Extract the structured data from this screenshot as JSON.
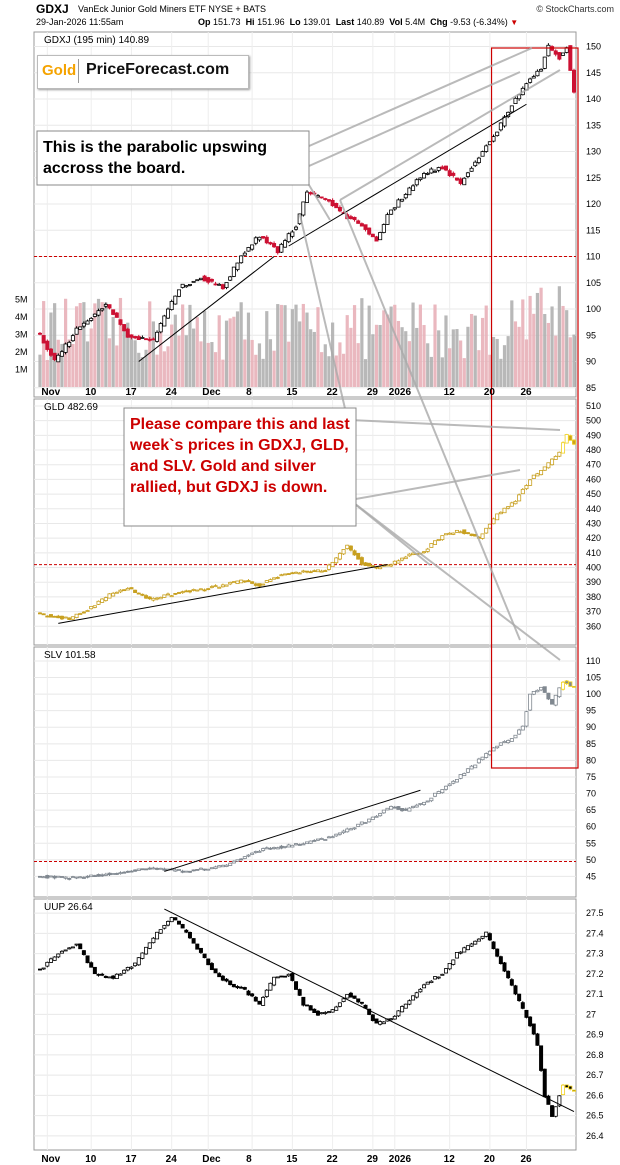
{
  "header": {
    "symbol": "GDXJ",
    "name": "VanEck Junior Gold Miners ETF NYSE + BATS",
    "datetime": "29-Jan-2026 11:55am",
    "open_label": "Op",
    "open": "151.73",
    "high_label": "Hi",
    "high": "151.96",
    "low_label": "Lo",
    "low": "139.01",
    "last_label": "Last",
    "last": "140.89",
    "vol_label": "Vol",
    "vol": "5.4M",
    "chg_label": "Chg",
    "chg": "-9.53 (-6.34%)",
    "copyright": "© StockCharts.com"
  },
  "logo": {
    "gold": "Gold",
    "brand": "PriceForecast.com"
  },
  "annotations": {
    "callout1": "This is the parabolic upswing accross the board.",
    "callout2": "Please compare this and last week`s prices in GDXJ, GLD, and SLV. Gold and silver rallied, but GDXJ is down."
  },
  "colors": {
    "up": "#000000",
    "down": "#cc1133",
    "gld": "#c8a020",
    "slv": "#808890",
    "uup": "#000000",
    "hilite": "#f0d020",
    "redline": "#cc0000",
    "volume_up": "#b0b0b0",
    "volume_down": "#e8b0b8"
  },
  "chart_data": [
    {
      "type": "candlestick",
      "title": "GDXJ (195 min) 140.89",
      "ylim": [
        84,
        152
      ],
      "yticks": [
        85,
        90,
        95,
        100,
        105,
        110,
        115,
        120,
        125,
        130,
        135,
        140,
        145,
        150
      ],
      "reference_line": 110,
      "anchors": [
        [
          0,
          95
        ],
        [
          4,
          90
        ],
        [
          10,
          96
        ],
        [
          18,
          101
        ],
        [
          24,
          95
        ],
        [
          31,
          94
        ],
        [
          38,
          104
        ],
        [
          44,
          106
        ],
        [
          50,
          104
        ],
        [
          55,
          110
        ],
        [
          60,
          114
        ],
        [
          65,
          111
        ],
        [
          70,
          116
        ],
        [
          73,
          122
        ],
        [
          78,
          121
        ],
        [
          83,
          118
        ],
        [
          88,
          116
        ],
        [
          92,
          113
        ],
        [
          95,
          118
        ],
        [
          100,
          122
        ],
        [
          105,
          126
        ],
        [
          110,
          127
        ],
        [
          115,
          124
        ],
        [
          120,
          129
        ],
        [
          125,
          134
        ],
        [
          130,
          140
        ],
        [
          134,
          144
        ],
        [
          137,
          146
        ],
        [
          139,
          150
        ],
        [
          142,
          148
        ],
        [
          144,
          150
        ],
        [
          146,
          141
        ]
      ],
      "count": 147,
      "volume": {
        "yticks": [
          "1M",
          "2M",
          "3M",
          "4M",
          "5M"
        ],
        "range_millions": [
          0,
          6
        ]
      }
    },
    {
      "type": "candlestick",
      "title": "GLD 482.69",
      "ylim": [
        350,
        512
      ],
      "yticks": [
        360,
        370,
        380,
        390,
        400,
        410,
        420,
        430,
        440,
        450,
        460,
        470,
        480,
        490,
        500,
        510
      ],
      "reference_line": 402,
      "anchors": [
        [
          0,
          368
        ],
        [
          8,
          365
        ],
        [
          14,
          373
        ],
        [
          20,
          383
        ],
        [
          24,
          386
        ],
        [
          30,
          378
        ],
        [
          38,
          383
        ],
        [
          44,
          385
        ],
        [
          50,
          388
        ],
        [
          55,
          391
        ],
        [
          60,
          388
        ],
        [
          66,
          395
        ],
        [
          72,
          397
        ],
        [
          78,
          398
        ],
        [
          84,
          415
        ],
        [
          88,
          403
        ],
        [
          92,
          400
        ],
        [
          96,
          402
        ],
        [
          100,
          408
        ],
        [
          105,
          411
        ],
        [
          110,
          422
        ],
        [
          115,
          425
        ],
        [
          120,
          420
        ],
        [
          125,
          436
        ],
        [
          130,
          446
        ],
        [
          134,
          460
        ],
        [
          138,
          468
        ],
        [
          142,
          478
        ],
        [
          144,
          490
        ],
        [
          146,
          483
        ]
      ],
      "count": 147
    },
    {
      "type": "candlestick",
      "title": "SLV 101.58",
      "ylim": [
        40,
        113
      ],
      "yticks": [
        45,
        50,
        55,
        60,
        65,
        70,
        75,
        80,
        85,
        90,
        95,
        100,
        105,
        110
      ],
      "reference_line": 49.5,
      "anchors": [
        [
          0,
          45
        ],
        [
          10,
          44.5
        ],
        [
          20,
          46
        ],
        [
          30,
          47.5
        ],
        [
          40,
          46.5
        ],
        [
          50,
          48
        ],
        [
          60,
          53
        ],
        [
          70,
          54.5
        ],
        [
          80,
          57
        ],
        [
          88,
          61
        ],
        [
          96,
          66
        ],
        [
          100,
          65
        ],
        [
          106,
          68
        ],
        [
          112,
          73
        ],
        [
          118,
          78
        ],
        [
          124,
          84
        ],
        [
          128,
          86
        ],
        [
          132,
          90
        ],
        [
          134,
          100
        ],
        [
          137,
          102
        ],
        [
          140,
          97
        ],
        [
          143,
          104
        ],
        [
          146,
          102
        ]
      ],
      "count": 147
    },
    {
      "type": "candlestick",
      "title": "UUP 26.64",
      "ylim": [
        26.35,
        27.55
      ],
      "yticks": [
        26.4,
        26.5,
        26.6,
        26.7,
        26.8,
        26.9,
        27.0,
        27.1,
        27.2,
        27.3,
        27.4,
        27.5
      ],
      "anchors": [
        [
          0,
          27.22
        ],
        [
          5,
          27.3
        ],
        [
          10,
          27.35
        ],
        [
          15,
          27.2
        ],
        [
          20,
          27.18
        ],
        [
          26,
          27.25
        ],
        [
          32,
          27.4
        ],
        [
          36,
          27.48
        ],
        [
          40,
          27.4
        ],
        [
          44,
          27.3
        ],
        [
          48,
          27.2
        ],
        [
          52,
          27.15
        ],
        [
          56,
          27.12
        ],
        [
          60,
          27.05
        ],
        [
          64,
          27.18
        ],
        [
          68,
          27.2
        ],
        [
          72,
          27.05
        ],
        [
          76,
          27.0
        ],
        [
          80,
          27.02
        ],
        [
          84,
          27.1
        ],
        [
          88,
          27.05
        ],
        [
          92,
          26.95
        ],
        [
          96,
          26.98
        ],
        [
          100,
          27.05
        ],
        [
          105,
          27.15
        ],
        [
          110,
          27.2
        ],
        [
          114,
          27.3
        ],
        [
          118,
          27.35
        ],
        [
          122,
          27.4
        ],
        [
          126,
          27.25
        ],
        [
          130,
          27.1
        ],
        [
          134,
          26.95
        ],
        [
          136,
          26.85
        ],
        [
          138,
          26.6
        ],
        [
          140,
          26.5
        ],
        [
          143,
          26.65
        ],
        [
          146,
          26.62
        ]
      ],
      "count": 147
    }
  ],
  "x_axis": {
    "labels": [
      {
        "label": "Nov",
        "index": 2
      },
      {
        "label": "10",
        "index": 14
      },
      {
        "label": "17",
        "index": 25
      },
      {
        "label": "24",
        "index": 36
      },
      {
        "label": "Dec",
        "index": 46
      },
      {
        "label": "8",
        "index": 58
      },
      {
        "label": "15",
        "index": 69
      },
      {
        "label": "22",
        "index": 80
      },
      {
        "label": "29",
        "index": 91
      },
      {
        "label": "2026",
        "index": 97
      },
      {
        "label": "12",
        "index": 112
      },
      {
        "label": "20",
        "index": 123
      },
      {
        "label": "26",
        "index": 133
      }
    ]
  },
  "indicators": {
    "period_highlight": "last two weeks",
    "trend": "parabolic upswing"
  }
}
